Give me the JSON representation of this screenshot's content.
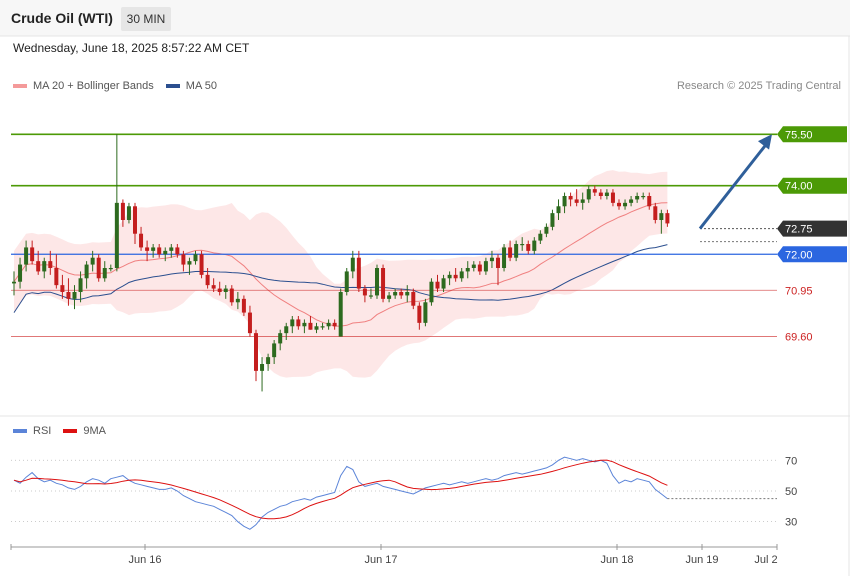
{
  "header": {
    "title": "Crude Oil (WTI)",
    "interval": "30 MIN",
    "datetime": "Wednesday, June 18, 2025 8:57:22 AM CET"
  },
  "legend": {
    "ma20": "MA 20 + Bollinger Bands",
    "ma50": "MA 50",
    "credit": "Research © 2025 Trading Central",
    "rsi": "RSI",
    "rsi_ma": "9MA"
  },
  "colors": {
    "resistance": "#4c9a06",
    "support": "#2b66e0",
    "pivot": "#333333",
    "minor": "#cc2222",
    "ma20": "#f08080",
    "ma50": "#2b4f8f",
    "band_fill": "#fde3e3",
    "bull": "#2d6a1f",
    "bear": "#c41e1e",
    "arrow": "#2f5f9a",
    "rsi": "#5b84d8",
    "rsi_ma": "#dd1111"
  },
  "chart_data": {
    "type": "candlestick",
    "x_axis_labels": [
      "Jun 16",
      "Jun 17",
      "Jun 18",
      "Jun 19",
      "Jul 2"
    ],
    "ylim": [
      67.4,
      76.5
    ],
    "levels": [
      {
        "value": 75.5,
        "label": "75.50",
        "kind": "resistance"
      },
      {
        "value": 74.0,
        "label": "74.00",
        "kind": "resistance"
      },
      {
        "value": 72.75,
        "label": "72.75",
        "kind": "pivot"
      },
      {
        "value": 72.0,
        "label": "72.00",
        "kind": "support"
      },
      {
        "value": 70.95,
        "label": "70.95",
        "kind": "minor"
      },
      {
        "value": 69.6,
        "label": "69.60",
        "kind": "minor"
      }
    ],
    "candles": [
      [
        71.15,
        71.5,
        70.8,
        71.2
      ],
      [
        71.2,
        71.9,
        71.0,
        71.7
      ],
      [
        71.7,
        72.4,
        71.5,
        72.2
      ],
      [
        72.2,
        72.4,
        71.7,
        71.8
      ],
      [
        71.8,
        72.1,
        71.4,
        71.5
      ],
      [
        71.5,
        71.9,
        71.3,
        71.8
      ],
      [
        71.8,
        72.1,
        71.4,
        71.6
      ],
      [
        71.6,
        72.0,
        71.0,
        71.1
      ],
      [
        71.1,
        71.4,
        70.7,
        70.9
      ],
      [
        70.9,
        71.3,
        70.5,
        70.7
      ],
      [
        70.7,
        71.1,
        70.4,
        70.9
      ],
      [
        70.9,
        71.5,
        70.6,
        71.3
      ],
      [
        71.3,
        71.8,
        71.0,
        71.7
      ],
      [
        71.7,
        72.1,
        71.5,
        71.9
      ],
      [
        71.9,
        72.0,
        71.2,
        71.3
      ],
      [
        71.3,
        71.8,
        71.2,
        71.6
      ],
      [
        71.6,
        71.7,
        71.5,
        71.6
      ],
      [
        71.6,
        75.5,
        71.5,
        73.5
      ],
      [
        73.5,
        73.6,
        72.8,
        73.0
      ],
      [
        73.0,
        73.5,
        72.9,
        73.4
      ],
      [
        73.4,
        73.5,
        72.3,
        72.6
      ],
      [
        72.6,
        72.8,
        72.1,
        72.2
      ],
      [
        72.2,
        72.4,
        71.8,
        72.1
      ],
      [
        72.1,
        72.3,
        71.9,
        72.2
      ],
      [
        72.2,
        72.3,
        71.9,
        72.0
      ],
      [
        72.0,
        72.2,
        71.8,
        72.1
      ],
      [
        72.1,
        72.3,
        71.9,
        72.2
      ],
      [
        72.2,
        72.3,
        71.9,
        72.0
      ],
      [
        72.0,
        72.1,
        71.5,
        71.7
      ],
      [
        71.7,
        71.9,
        71.4,
        71.8
      ],
      [
        71.8,
        72.1,
        71.7,
        72.0
      ],
      [
        72.0,
        72.1,
        71.3,
        71.4
      ],
      [
        71.4,
        71.6,
        71.0,
        71.1
      ],
      [
        71.1,
        71.3,
        70.9,
        71.0
      ],
      [
        71.0,
        71.2,
        70.8,
        70.9
      ],
      [
        70.9,
        71.1,
        70.7,
        71.0
      ],
      [
        71.0,
        71.1,
        70.5,
        70.6
      ],
      [
        70.6,
        70.9,
        70.4,
        70.7
      ],
      [
        70.7,
        70.8,
        70.2,
        70.3
      ],
      [
        70.3,
        70.5,
        69.6,
        69.7
      ],
      [
        69.7,
        69.8,
        68.3,
        68.6
      ],
      [
        68.6,
        69.0,
        68.0,
        68.8
      ],
      [
        68.8,
        69.1,
        68.6,
        69.0
      ],
      [
        69.0,
        69.5,
        68.8,
        69.4
      ],
      [
        69.4,
        69.8,
        69.2,
        69.7
      ],
      [
        69.7,
        70.0,
        69.5,
        69.9
      ],
      [
        69.9,
        70.2,
        69.7,
        70.1
      ],
      [
        70.1,
        70.2,
        69.8,
        69.9
      ],
      [
        69.9,
        70.1,
        69.7,
        70.0
      ],
      [
        70.0,
        70.2,
        69.8,
        69.8
      ],
      [
        69.8,
        70.0,
        69.7,
        69.9
      ],
      [
        69.9,
        70.0,
        69.8,
        69.9
      ],
      [
        69.9,
        70.1,
        69.8,
        70.0
      ],
      [
        70.0,
        70.1,
        69.8,
        69.9
      ],
      [
        69.6,
        71.0,
        69.6,
        70.9
      ],
      [
        70.9,
        71.6,
        70.8,
        71.5
      ],
      [
        71.5,
        72.1,
        71.3,
        71.9
      ],
      [
        71.9,
        72.1,
        70.9,
        71.0
      ],
      [
        71.0,
        71.1,
        70.6,
        70.8
      ],
      [
        70.8,
        71.0,
        70.7,
        70.8
      ],
      [
        70.8,
        71.7,
        70.7,
        71.6
      ],
      [
        71.6,
        71.7,
        70.6,
        70.7
      ],
      [
        70.7,
        70.9,
        70.6,
        70.8
      ],
      [
        70.8,
        71.0,
        70.7,
        70.9
      ],
      [
        70.9,
        71.0,
        70.7,
        70.8
      ],
      [
        70.8,
        71.1,
        70.6,
        70.9
      ],
      [
        70.9,
        71.0,
        70.4,
        70.5
      ],
      [
        70.5,
        70.6,
        69.8,
        70.0
      ],
      [
        70.0,
        70.7,
        69.9,
        70.6
      ],
      [
        70.6,
        71.3,
        70.5,
        71.2
      ],
      [
        71.2,
        71.4,
        70.9,
        71.0
      ],
      [
        71.0,
        71.4,
        70.9,
        71.3
      ],
      [
        71.3,
        71.5,
        71.1,
        71.4
      ],
      [
        71.4,
        71.6,
        71.2,
        71.3
      ],
      [
        71.3,
        71.6,
        71.2,
        71.5
      ],
      [
        71.5,
        71.8,
        71.3,
        71.6
      ],
      [
        71.6,
        71.8,
        71.5,
        71.7
      ],
      [
        71.7,
        71.8,
        71.4,
        71.5
      ],
      [
        71.5,
        71.9,
        71.4,
        71.8
      ],
      [
        71.8,
        72.1,
        71.6,
        71.9
      ],
      [
        71.9,
        72.0,
        71.1,
        71.6
      ],
      [
        71.6,
        72.3,
        71.5,
        72.2
      ],
      [
        72.2,
        72.4,
        71.8,
        71.9
      ],
      [
        71.9,
        72.4,
        71.8,
        72.3
      ],
      [
        72.3,
        72.5,
        72.1,
        72.3
      ],
      [
        72.3,
        72.4,
        72.0,
        72.1
      ],
      [
        72.1,
        72.5,
        72.0,
        72.4
      ],
      [
        72.4,
        72.7,
        72.3,
        72.6
      ],
      [
        72.6,
        72.9,
        72.5,
        72.8
      ],
      [
        72.8,
        73.3,
        72.7,
        73.2
      ],
      [
        73.2,
        73.6,
        73.0,
        73.4
      ],
      [
        73.4,
        73.8,
        73.2,
        73.7
      ],
      [
        73.7,
        73.8,
        73.4,
        73.6
      ],
      [
        73.6,
        73.9,
        73.4,
        73.5
      ],
      [
        73.5,
        73.8,
        73.3,
        73.6
      ],
      [
        73.6,
        74.0,
        73.5,
        73.9
      ],
      [
        73.9,
        74.0,
        73.7,
        73.8
      ],
      [
        73.8,
        73.9,
        73.6,
        73.7
      ],
      [
        73.7,
        73.9,
        73.6,
        73.8
      ],
      [
        73.8,
        73.9,
        73.4,
        73.5
      ],
      [
        73.5,
        73.6,
        73.3,
        73.4
      ],
      [
        73.4,
        73.6,
        73.3,
        73.5
      ],
      [
        73.5,
        73.7,
        73.4,
        73.6
      ],
      [
        73.6,
        73.8,
        73.5,
        73.7
      ],
      [
        73.7,
        73.8,
        73.6,
        73.7
      ],
      [
        73.7,
        73.8,
        73.3,
        73.4
      ],
      [
        73.4,
        73.5,
        72.9,
        73.0
      ],
      [
        73.0,
        73.3,
        72.6,
        73.2
      ],
      [
        73.2,
        73.3,
        72.8,
        72.9
      ]
    ],
    "x_start": 14,
    "x_step": 6.05,
    "arrow": {
      "from": [
        700,
        72.75
      ],
      "to": [
        772,
        75.5
      ]
    },
    "rsi": {
      "ylim": [
        20,
        78
      ],
      "ticks": [
        70,
        50,
        30
      ],
      "values": [
        57,
        55,
        59,
        62,
        58,
        56,
        57,
        55,
        54,
        52,
        51,
        53,
        56,
        58,
        57,
        55,
        58,
        59,
        60,
        57,
        55,
        54,
        53,
        52,
        51,
        51,
        52,
        50,
        47,
        45,
        43,
        42,
        41,
        40,
        38,
        36,
        34,
        30,
        27,
        25,
        28,
        33,
        36,
        38,
        40,
        41,
        43,
        44,
        45,
        44,
        46,
        47,
        48,
        49,
        60,
        66,
        64,
        56,
        53,
        54,
        55,
        53,
        52,
        51,
        50,
        49,
        48,
        50,
        52,
        53,
        54,
        55,
        54,
        55,
        56,
        55,
        56,
        57,
        58,
        57,
        58,
        60,
        61,
        62,
        61,
        62,
        63,
        64,
        65,
        67,
        70,
        72,
        71,
        70,
        71,
        70,
        69,
        70,
        68,
        60,
        55,
        57,
        56,
        58,
        57,
        56,
        51,
        48,
        45
      ]
    }
  }
}
